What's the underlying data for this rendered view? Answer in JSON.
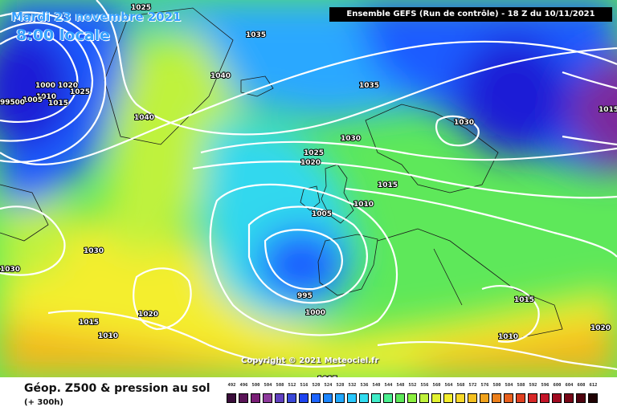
{
  "header": {
    "title": "Ensemble GEFS  (Run de contrôle)  -  18 Z du 10/11/2021",
    "date": "Mardi 23 novembre 2021",
    "local_time": "8:00 locale"
  },
  "map": {
    "copyright": "Copyright © 2021 Meteociel.fr",
    "isobar_labels": [
      "1025",
      "1035",
      "1020",
      "1025",
      "1015",
      "1010",
      "1005",
      "1000",
      "995",
      "1000",
      "1040",
      "1040",
      "1035",
      "1030",
      "1030",
      "1025",
      "1020",
      "1015",
      "1010",
      "1005",
      "995",
      "1000",
      "1030",
      "1030",
      "1015",
      "1020",
      "1010",
      "1015",
      "1010",
      "1020",
      "1015",
      "1015"
    ],
    "colors": {
      "deep_low": "#1b1fd6",
      "blue": "#1e5cff",
      "sky": "#2aa8ff",
      "cyan": "#32d8ee",
      "green": "#5ee85a",
      "lime": "#bff23c",
      "yellow": "#f4ee2e",
      "orange": "#f3b71f",
      "purple": "#7b2a9c",
      "isobar": "#ffffff"
    }
  },
  "legend": {
    "product": "Géop. Z500 & pression au sol",
    "lead_time": "(+ 300h)",
    "scale": {
      "labels": [
        "492",
        "496",
        "500",
        "504",
        "508",
        "512",
        "516",
        "520",
        "524",
        "528",
        "532",
        "536",
        "540",
        "544",
        "548",
        "552",
        "556",
        "560",
        "564",
        "568",
        "572",
        "576",
        "580",
        "584",
        "588",
        "592",
        "596",
        "600",
        "604",
        "608",
        "612"
      ],
      "colors": [
        "#3a0d3a",
        "#5a1457",
        "#7a1e76",
        "#8e3a9c",
        "#6040c0",
        "#3a48d8",
        "#1e44f0",
        "#1e64ff",
        "#1e86ff",
        "#22a8ff",
        "#2ac8ff",
        "#32dcf0",
        "#40ecc8",
        "#4cf090",
        "#5ee85a",
        "#8cf040",
        "#bff23c",
        "#e2f232",
        "#f4ee2e",
        "#f8d82a",
        "#f4c020",
        "#f0a21c",
        "#ec801c",
        "#e8601e",
        "#e04020",
        "#d82828",
        "#c41428",
        "#a00a20",
        "#780818",
        "#500410",
        "#200204"
      ]
    }
  }
}
